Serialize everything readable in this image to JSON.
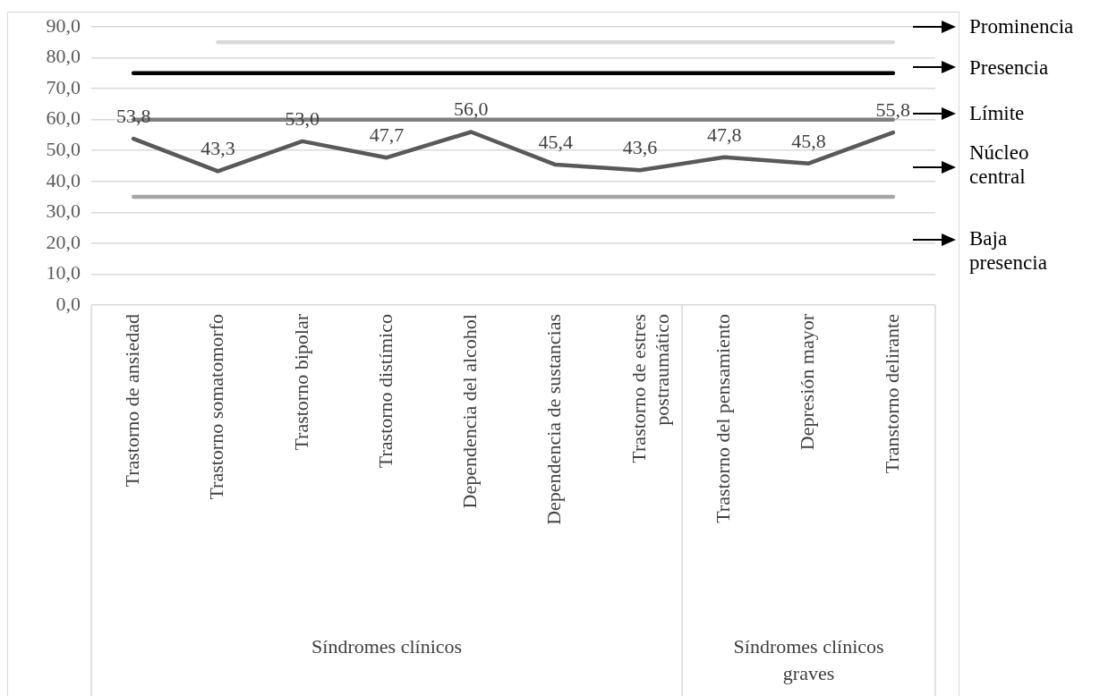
{
  "chart_data": {
    "type": "line",
    "categories": [
      "Trastorno de ansiedad",
      "Trastorno somatomorfo",
      "Trastorno bipolar",
      "Trastorno distímico",
      "Dependencia del alcohol",
      "Dependencia de sustancias",
      "Trastorno de estres postraumático",
      "Trastorno del pensamiento",
      "Depresión mayor",
      "Transtorno delirante"
    ],
    "series": [
      {
        "color": "#d9d9d9",
        "values": [
          null,
          85,
          85,
          85,
          85,
          85,
          85,
          85,
          85,
          85
        ]
      },
      {
        "color": "#000000",
        "values": [
          75,
          75,
          75,
          75,
          75,
          75,
          75,
          75,
          75,
          75
        ]
      },
      {
        "color": "#808080",
        "values": [
          60,
          60,
          60,
          60,
          60,
          60,
          60,
          60,
          60,
          60
        ]
      },
      {
        "color": "#a6a6a6",
        "values": [
          35,
          35,
          35,
          35,
          35,
          35,
          35,
          35,
          35,
          35
        ]
      },
      {
        "color": "#595959",
        "values": [
          53.8,
          43.3,
          53.0,
          47.7,
          56.0,
          45.4,
          43.6,
          47.8,
          45.8,
          55.8
        ],
        "value_labels": [
          "53,8",
          "43,3",
          "53,0",
          "47,7",
          "56,0",
          "45,4",
          "43,6",
          "47,8",
          "45,8",
          "55,8"
        ]
      }
    ],
    "ylim": [
      0,
      90
    ],
    "yticks": [
      {
        "value": 0,
        "label": "0,0"
      },
      {
        "value": 10,
        "label": "10,0"
      },
      {
        "value": 20,
        "label": "20,0"
      },
      {
        "value": 30,
        "label": "30,0"
      },
      {
        "value": 40,
        "label": "40,0"
      },
      {
        "value": 50,
        "label": "50,0"
      },
      {
        "value": 60,
        "label": "60,0"
      },
      {
        "value": 70,
        "label": "70,0"
      },
      {
        "value": 80,
        "label": "80,0"
      },
      {
        "value": 90,
        "label": "90,0"
      }
    ],
    "grid": "y",
    "legend": false,
    "marker": "none",
    "line_style": "solid",
    "annotations": [
      "Síndromes clínicos",
      "Síndromes clínicos graves",
      "Prominencia",
      "Presencia",
      "Límite",
      "Núcleo central",
      "Baja presencia"
    ]
  }
}
